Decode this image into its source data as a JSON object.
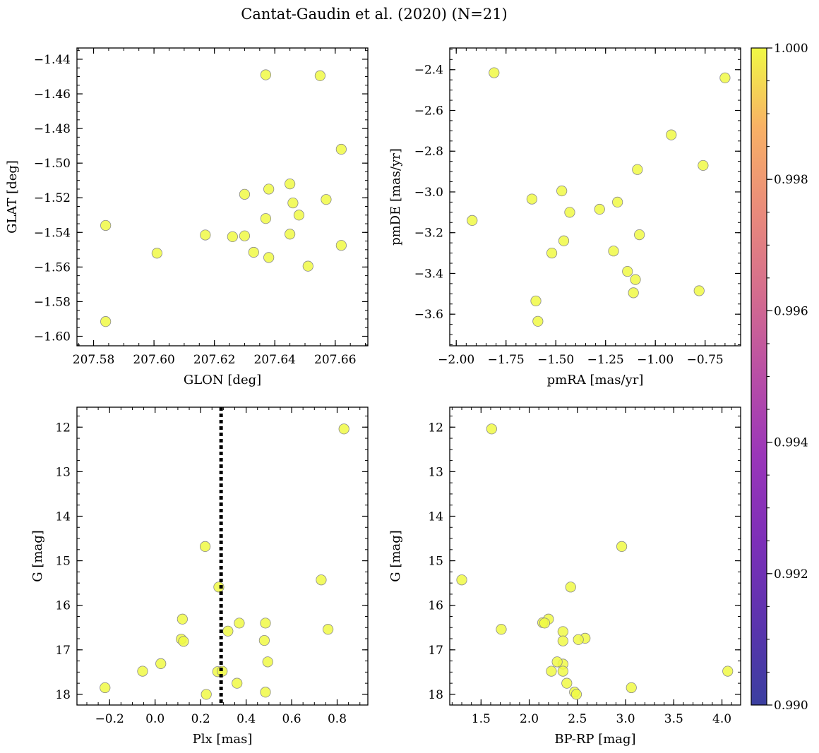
{
  "figure": {
    "title": "Cantat-Gaudin et al. (2020) (N=21)"
  },
  "colorbar": {
    "range": [
      0.99,
      1.0
    ],
    "ticks": [
      0.99,
      0.992,
      0.994,
      0.996,
      0.998,
      1.0
    ],
    "tick_labels": [
      "0.990",
      "0.992",
      "0.994",
      "0.996",
      "0.998",
      "1.000"
    ],
    "colormap": "plasma"
  },
  "point_style": {
    "fill": "#f0f945",
    "edge": "#8a8a8a",
    "opacity": 0.85
  },
  "chart_data": [
    {
      "type": "scatter",
      "name": "glon-glat",
      "xlabel": "GLON [deg]",
      "ylabel": "GLAT [deg]",
      "xlim": [
        207.5745,
        207.6708
      ],
      "ylim": [
        -1.6055,
        -1.4335
      ],
      "xticks": [
        207.58,
        207.6,
        207.62,
        207.64,
        207.66
      ],
      "xtick_labels": [
        "207.58",
        "207.60",
        "207.62",
        "207.64",
        "207.66"
      ],
      "yticks": [
        -1.6,
        -1.58,
        -1.56,
        -1.54,
        -1.52,
        -1.5,
        -1.48,
        -1.46,
        -1.44
      ],
      "ytick_labels": [
        "−1.60",
        "−1.58",
        "−1.56",
        "−1.54",
        "−1.52",
        "−1.50",
        "−1.48",
        "−1.46",
        "−1.44"
      ],
      "x_minor": 0.005,
      "y_minor": 0.005,
      "y_inverted": false,
      "x": [
        207.637,
        207.655,
        207.662,
        207.63,
        207.638,
        207.645,
        207.646,
        207.657,
        207.637,
        207.648,
        207.584,
        207.617,
        207.626,
        207.63,
        207.645,
        207.662,
        207.601,
        207.633,
        207.638,
        207.651,
        207.584
      ],
      "y": [
        -1.449,
        -1.4495,
        -1.492,
        -1.518,
        -1.515,
        -1.512,
        -1.523,
        -1.521,
        -1.532,
        -1.53,
        -1.536,
        -1.5415,
        -1.5425,
        -1.542,
        -1.541,
        -1.5475,
        -1.552,
        -1.5515,
        -1.5545,
        -1.5595,
        -1.5915
      ]
    },
    {
      "type": "scatter",
      "name": "pm",
      "xlabel": "pmRA [mas/yr]",
      "ylabel": "pmDE [mas/yr]",
      "xlim": [
        -2.0327,
        -0.5716
      ],
      "ylim": [
        -3.7552,
        -2.2935
      ],
      "xticks": [
        -2.0,
        -1.75,
        -1.5,
        -1.25,
        -1.0,
        -0.75
      ],
      "xtick_labels": [
        "−2.00",
        "−1.75",
        "−1.50",
        "−1.25",
        "−1.00",
        "−0.75"
      ],
      "yticks": [
        -3.6,
        -3.4,
        -3.2,
        -3.0,
        -2.8,
        -2.6,
        -2.4
      ],
      "ytick_labels": [
        "−3.6",
        "−3.4",
        "−3.2",
        "−3.0",
        "−2.8",
        "−2.6",
        "−2.4"
      ],
      "x_minor": 0.05,
      "y_minor": 0.05,
      "y_inverted": false,
      "x": [
        -1.81,
        -0.65,
        -0.92,
        -1.09,
        -0.76,
        -1.47,
        -1.62,
        -1.19,
        -1.28,
        -1.43,
        -1.92,
        -1.08,
        -1.46,
        -1.52,
        -1.21,
        -1.14,
        -1.1,
        -0.78,
        -1.11,
        -1.6,
        -1.59
      ],
      "y": [
        -2.415,
        -2.44,
        -2.72,
        -2.89,
        -2.87,
        -2.995,
        -3.035,
        -3.05,
        -3.085,
        -3.1,
        -3.14,
        -3.21,
        -3.24,
        -3.3,
        -3.29,
        -3.39,
        -3.43,
        -3.485,
        -3.495,
        -3.535,
        -3.635
      ]
    },
    {
      "type": "scatter",
      "name": "plx-g",
      "xlabel": "Plx [mas]",
      "ylabel": "G [mag]",
      "xlim": [
        -0.3434,
        0.9349
      ],
      "ylim": [
        18.2389,
        11.5521
      ],
      "xticks": [
        -0.2,
        0.0,
        0.2,
        0.4,
        0.6,
        0.8
      ],
      "xtick_labels": [
        "−0.2",
        "0.0",
        "0.2",
        "0.4",
        "0.6",
        "0.8"
      ],
      "yticks": [
        12,
        13,
        14,
        15,
        16,
        17,
        18
      ],
      "ytick_labels": [
        "12",
        "13",
        "14",
        "15",
        "16",
        "17",
        "18"
      ],
      "x_minor": 0.05,
      "y_minor": 0.25,
      "y_inverted": true,
      "vline": {
        "x": 0.29,
        "style": "dotted",
        "color": "#000000"
      },
      "x": [
        0.83,
        0.22,
        0.73,
        0.28,
        0.12,
        0.37,
        0.485,
        0.76,
        0.32,
        0.115,
        0.125,
        0.48,
        0.025,
        0.495,
        -0.055,
        0.275,
        0.295,
        0.36,
        -0.22,
        0.485,
        0.225
      ],
      "y": [
        12.04,
        14.68,
        15.43,
        15.59,
        16.31,
        16.4,
        16.4,
        16.54,
        16.58,
        16.76,
        16.81,
        16.79,
        17.31,
        17.27,
        17.48,
        17.49,
        17.48,
        17.75,
        17.85,
        17.95,
        18.0
      ]
    },
    {
      "type": "scatter",
      "name": "cmd",
      "xlabel": "BP-RP [mag]",
      "ylabel": "G [mag]",
      "xlim": [
        1.1753,
        4.1938
      ],
      "ylim": [
        18.2389,
        11.5521
      ],
      "xticks": [
        1.5,
        2.0,
        2.5,
        3.0,
        3.5,
        4.0
      ],
      "xtick_labels": [
        "1.5",
        "2.0",
        "2.5",
        "3.0",
        "3.5",
        "4.0"
      ],
      "yticks": [
        12,
        13,
        14,
        15,
        16,
        17,
        18
      ],
      "ytick_labels": [
        "12",
        "13",
        "14",
        "15",
        "16",
        "17",
        "18"
      ],
      "x_minor": 0.1,
      "y_minor": 0.25,
      "y_inverted": true,
      "x": [
        1.61,
        2.96,
        1.3,
        2.43,
        2.2,
        2.14,
        2.16,
        1.71,
        2.35,
        2.58,
        2.51,
        2.35,
        2.35,
        2.29,
        2.23,
        2.35,
        4.06,
        2.39,
        3.06,
        2.47,
        2.49
      ],
      "y": [
        12.04,
        14.68,
        15.43,
        15.59,
        16.31,
        16.39,
        16.4,
        16.54,
        16.59,
        16.74,
        16.77,
        16.8,
        17.32,
        17.27,
        17.48,
        17.48,
        17.48,
        17.75,
        17.85,
        17.95,
        18.0
      ]
    }
  ]
}
